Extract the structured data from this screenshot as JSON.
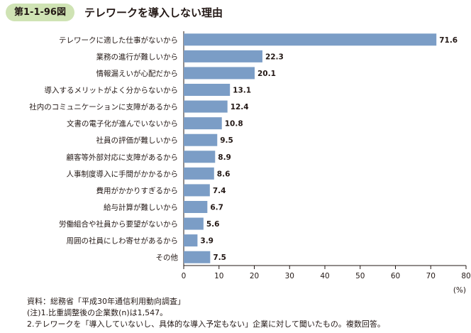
{
  "figure": {
    "label": "第1-1-96図",
    "title": "テレワークを導入しない理由"
  },
  "chart_data": {
    "type": "bar",
    "orientation": "horizontal",
    "categories": [
      "テレワークに適した仕事がないから",
      "業務の進行が難しいから",
      "情報漏えいが心配だから",
      "導入するメリットがよく分からないから",
      "社内のコミュニケーションに支障があるから",
      "文書の電子化が進んでいないから",
      "社員の評価が難しいから",
      "顧客等外部対応に支障があるから",
      "人事制度導入に手間がかかるから",
      "費用がかかりすぎるから",
      "給与計算が難しいから",
      "労働組合や社員から要望がないから",
      "周囲の社員にしわ寄せがあるから",
      "その他"
    ],
    "values": [
      71.6,
      22.3,
      20.1,
      13.1,
      12.4,
      10.8,
      9.5,
      8.9,
      8.6,
      7.4,
      6.7,
      5.6,
      3.9,
      7.5
    ],
    "value_labels": [
      "71.6",
      "22.3",
      "20.1",
      "13.1",
      "12.4",
      "10.8",
      "9.5",
      "8.9",
      "8.6",
      "7.4",
      "6.7",
      "5.6",
      "3.9",
      "7.5"
    ],
    "xlim": [
      0,
      80
    ],
    "xticks": [
      "0",
      "10",
      "20",
      "30",
      "40",
      "50",
      "60",
      "70",
      "80"
    ],
    "xunit": "(%)",
    "bar_color": "#7b9dc6",
    "grid": false
  },
  "notes": [
    "資料：総務省「平成30年通信利用動向調査」",
    "(注)1.比重調整後の企業数(n)は1,547。",
    "2.テレワークを「導入していないし、具体的な導入予定もない」企業に対して聞いたもの。複数回答。"
  ]
}
